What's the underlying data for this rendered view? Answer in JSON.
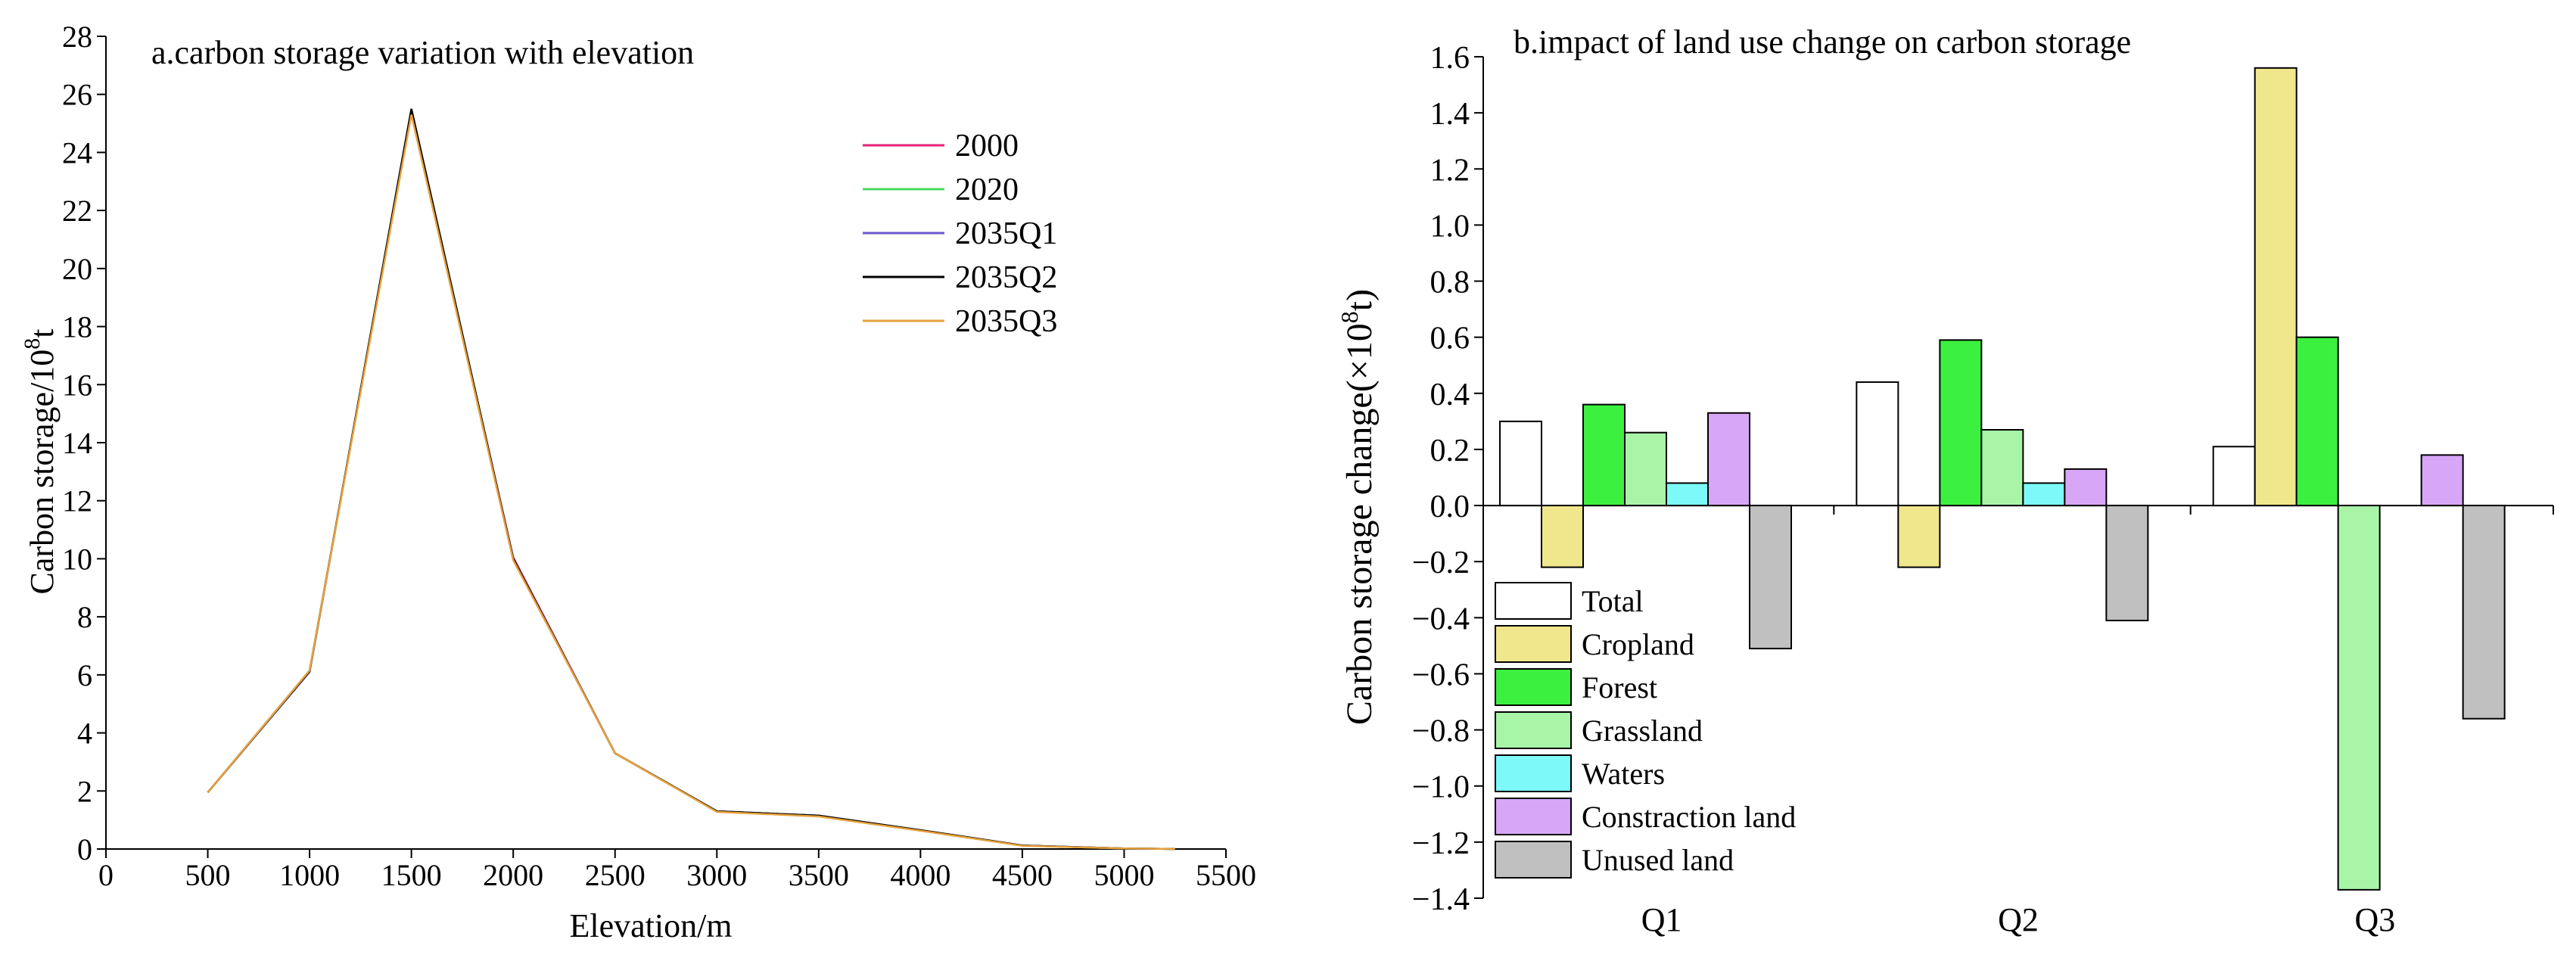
{
  "chart_data": [
    {
      "type": "line",
      "title": "a.carbon storage variation with elevation",
      "xlabel": "Elevation/m",
      "ylabel_main": "Carbon storage/10",
      "ylabel_sup": "8",
      "ylabel_tail": "t",
      "xlim": [
        0,
        5500
      ],
      "ylim": [
        0,
        28
      ],
      "x_ticks": [
        "0",
        "500",
        "1000",
        "1500",
        "2000",
        "2500",
        "3000",
        "3500",
        "4000",
        "4500",
        "5000",
        "5500"
      ],
      "y_ticks": [
        "0",
        "2",
        "4",
        "6",
        "8",
        "10",
        "12",
        "14",
        "16",
        "18",
        "20",
        "22",
        "24",
        "26",
        "28"
      ],
      "x": [
        500,
        1000,
        1500,
        2000,
        2500,
        3000,
        3500,
        4000,
        4500,
        5000,
        5250
      ],
      "series": [
        {
          "name": "2000",
          "color": "#e8217a",
          "values": [
            1.95,
            6.15,
            25.4,
            10.05,
            3.3,
            1.3,
            1.15,
            0.65,
            0.12,
            0.02,
            0.0
          ]
        },
        {
          "name": "2020",
          "color": "#4cd964",
          "values": [
            1.95,
            6.15,
            25.4,
            10.0,
            3.3,
            1.3,
            1.15,
            0.65,
            0.12,
            0.02,
            0.0
          ]
        },
        {
          "name": "2035Q1",
          "color": "#6a5acd",
          "values": [
            1.95,
            6.1,
            25.45,
            10.0,
            3.3,
            1.3,
            1.15,
            0.65,
            0.12,
            0.02,
            0.0
          ]
        },
        {
          "name": "2035Q2",
          "color": "#000000",
          "values": [
            1.95,
            6.12,
            25.5,
            10.0,
            3.3,
            1.3,
            1.15,
            0.65,
            0.12,
            0.02,
            0.0
          ]
        },
        {
          "name": "2035Q3",
          "color": "#e6a23c",
          "values": [
            1.95,
            6.15,
            25.3,
            9.95,
            3.3,
            1.28,
            1.12,
            0.63,
            0.11,
            0.02,
            0.0
          ]
        }
      ]
    },
    {
      "type": "bar",
      "title": "b.impact of land use change on carbon storage",
      "ylabel": "Carbon storage change(×10",
      "ylabel_sup": "8",
      "ylabel_tail": "t)",
      "ylim": [
        -1.4,
        1.6
      ],
      "y_ticks": [
        "−1.4",
        "−1.2",
        "−1.0",
        "−0.8",
        "−0.6",
        "−0.4",
        "−0.2",
        "0.0",
        "0.2",
        "0.4",
        "0.6",
        "0.8",
        "1.0",
        "1.2",
        "1.4",
        "1.6"
      ],
      "categories": [
        "Q1",
        "Q2",
        "Q3"
      ],
      "series": [
        {
          "name": "Total",
          "color": "#ffffff",
          "values": [
            0.3,
            0.44,
            0.21
          ]
        },
        {
          "name": "Cropland",
          "color": "#f0e68c",
          "values": [
            -0.22,
            -0.22,
            1.56
          ]
        },
        {
          "name": "Forest",
          "color": "#3cf040",
          "values": [
            0.36,
            0.59,
            0.6
          ]
        },
        {
          "name": "Grassland",
          "color": "#a8f5a8",
          "values": [
            0.26,
            0.27,
            -1.37
          ]
        },
        {
          "name": "Waters",
          "color": "#7df9f9",
          "values": [
            0.08,
            0.08,
            0.0
          ]
        },
        {
          "name": "Constraction land",
          "color": "#d7a6f7",
          "values": [
            0.33,
            0.13,
            0.18
          ]
        },
        {
          "name": "Unused land",
          "color": "#c0c0c0",
          "values": [
            -0.51,
            -0.41,
            -0.76
          ]
        }
      ]
    }
  ]
}
